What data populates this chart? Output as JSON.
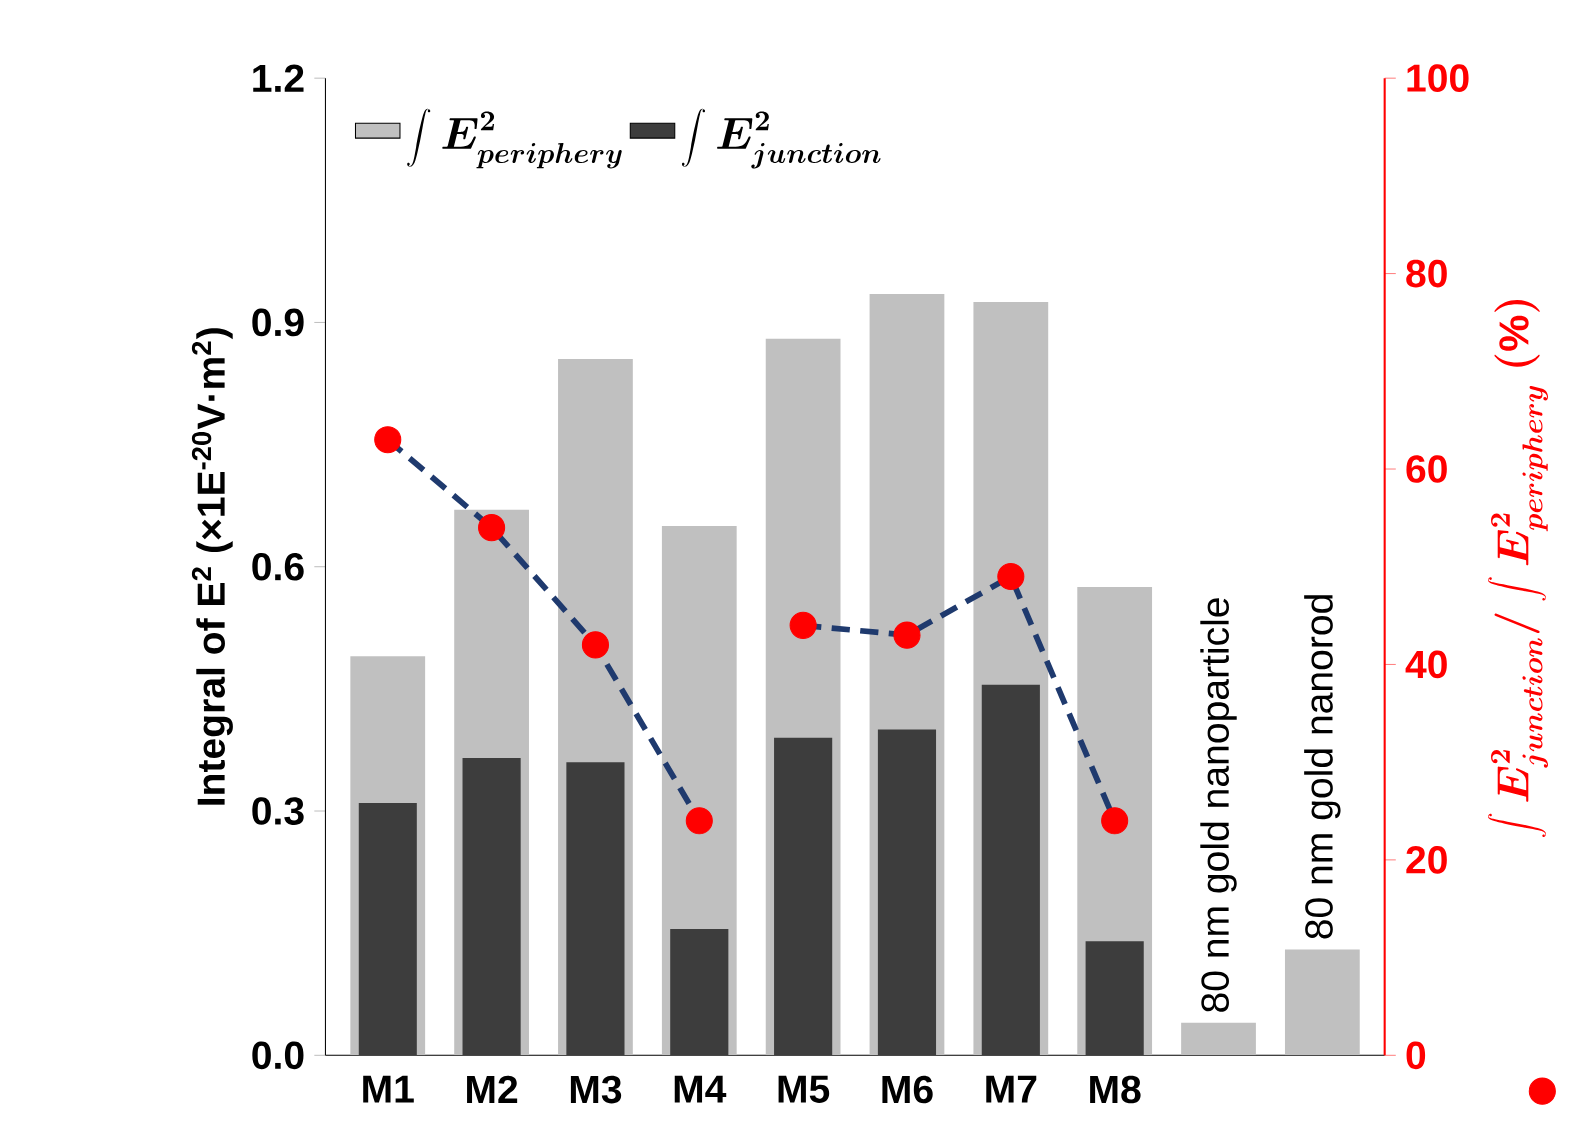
{
  "chart_data": {
    "type": "bar",
    "ylabel": "Integral of E$^{2}$ (×1E$^{-20}$V·m$^{2}$)",
    "y2label": "\\int E_{junction}^{2} \\Big/ \\int E_{periphery}^{2}\\ (\\%)",
    "categories": [
      "M1",
      "M2",
      "M3",
      "M4",
      "M5",
      "M6",
      "M7",
      "M8",
      "80 nm gold nanoparticle",
      "80 nm gold nanorod"
    ],
    "series": [
      {
        "name": "\\int E_{periphery}^{2}",
        "color": "#c0c0c0",
        "values": [
          0.49,
          0.67,
          0.855,
          0.65,
          0.88,
          0.935,
          0.925,
          0.575,
          0.04,
          0.13
        ]
      },
      {
        "name": "\\int E_{junction}^{2}",
        "color": "#3d3d3d",
        "values": [
          0.31,
          0.365,
          0.36,
          0.155,
          0.39,
          0.4,
          0.455,
          0.14,
          null,
          null
        ]
      },
      {
        "type": "line",
        "axis": "y2",
        "color": "#1f3a6e",
        "line_style": "dashed",
        "values": [
          63,
          54,
          42,
          24,
          null,
          null,
          null,
          null,
          null,
          null
        ]
      },
      {
        "type": "line",
        "axis": "y2",
        "color": "#1f3a6e",
        "line_style": "dashed",
        "values": [
          null,
          null,
          null,
          null,
          44,
          43,
          49,
          24,
          null,
          null
        ]
      },
      {
        "type": "scatter",
        "axis": "y2",
        "color": "#ff0000",
        "marker": "circle",
        "values": [
          63,
          54,
          42,
          24,
          44,
          43,
          49,
          24,
          null,
          null
        ]
      }
    ],
    "ylim": [
      0,
      1.2
    ],
    "yticks": [
      {
        "value": 0,
        "label": "0.0"
      },
      {
        "value": 0.3,
        "label": "0.3"
      },
      {
        "value": 0.6,
        "label": "0.6"
      },
      {
        "value": 0.9,
        "label": "0.9"
      },
      {
        "value": 1.2,
        "label": "1.2"
      }
    ],
    "y2lim": [
      0,
      100
    ],
    "y2ticks": [
      0,
      20,
      40,
      60,
      80,
      100
    ],
    "legend": "top left"
  }
}
